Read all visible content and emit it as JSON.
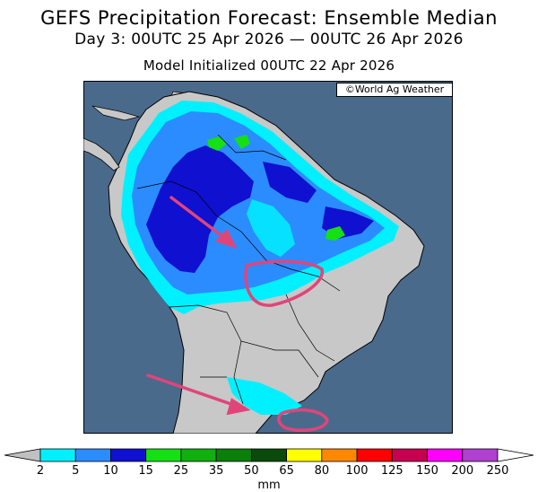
{
  "header": {
    "title": "GEFS Precipitation Forecast: Ensemble Median",
    "subtitle": "Day 3: 00UTC 25 Apr 2026 — 00UTC 26 Apr 2026",
    "initialized": "Model Initialized 00UTC 22 Apr 2026"
  },
  "map": {
    "credit": "©World Ag Weather",
    "ocean_color": "#4a6a8c",
    "land_color": "#c8c8c8",
    "annotation_color": "#e0457a"
  },
  "legend": {
    "unit": "mm",
    "ticks": [
      "2",
      "5",
      "10",
      "15",
      "25",
      "35",
      "50",
      "65",
      "80",
      "100",
      "125",
      "150",
      "200",
      "250"
    ],
    "colors": [
      "#00f0ff",
      "#2b8cff",
      "#1010d0",
      "#14e014",
      "#0fb00f",
      "#0a800a",
      "#0a4a0a",
      "#ffff00",
      "#ff8800",
      "#ff0000",
      "#c80050",
      "#ff00ff",
      "#b040d0"
    ]
  }
}
